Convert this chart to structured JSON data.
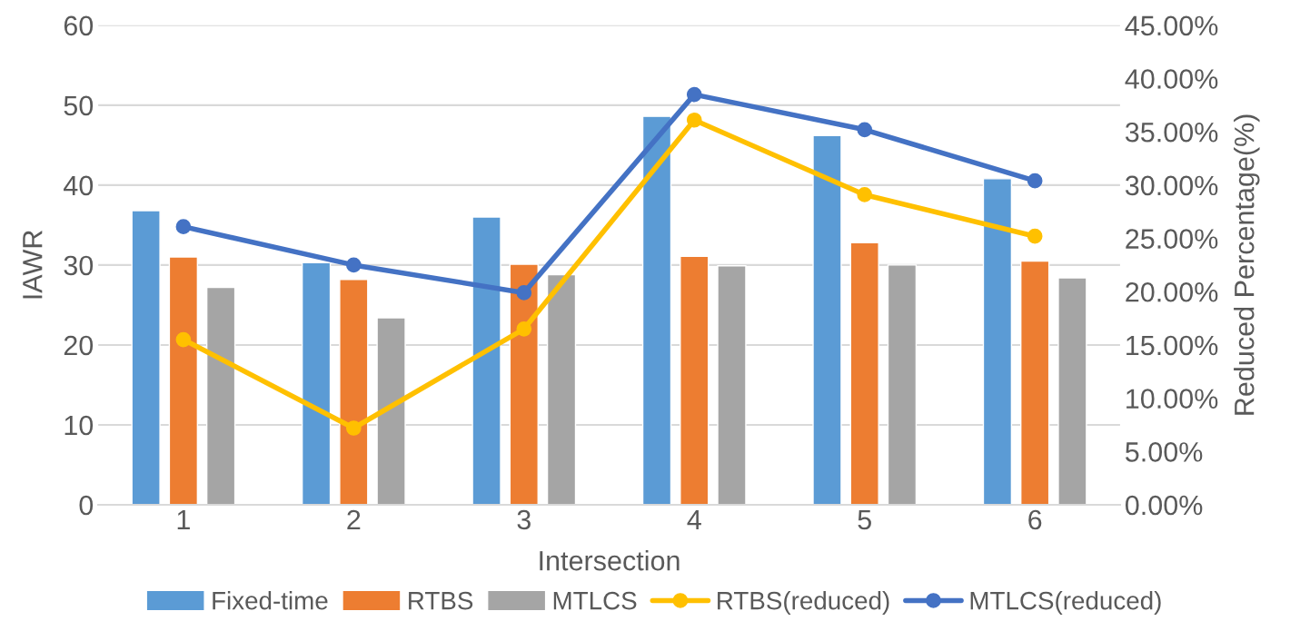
{
  "chart_data": {
    "type": "bar",
    "xlabel": "Intersection",
    "ylabel": "IAWR",
    "y2label": "Reduced Percentage(%)",
    "categories": [
      "1",
      "2",
      "3",
      "4",
      "5",
      "6"
    ],
    "series": [
      {
        "name": "Fixed-time",
        "color": "#5b9bd5",
        "values": [
          36.8,
          30.3,
          36.0,
          48.6,
          46.2,
          40.8
        ]
      },
      {
        "name": "RTBS",
        "color": "#ed7d31",
        "values": [
          31.0,
          28.2,
          30.1,
          31.1,
          32.8,
          30.5
        ]
      },
      {
        "name": "MTLCS",
        "color": "#a5a5a5",
        "values": [
          27.2,
          23.4,
          28.8,
          29.9,
          30.0,
          28.4
        ]
      },
      {
        "name": "RTBS(reduced)",
        "type": "line",
        "axis": "y2",
        "marker": "circle",
        "color": "#ffc000",
        "values": [
          15.5,
          7.2,
          16.5,
          36.1,
          29.1,
          25.2
        ]
      },
      {
        "name": "MTLCS(reduced)",
        "type": "line",
        "axis": "y2",
        "marker": "circle",
        "color": "#4472c4",
        "values": [
          26.1,
          22.5,
          19.9,
          38.5,
          35.2,
          30.4
        ]
      }
    ],
    "ylim": [
      0,
      60
    ],
    "yticks": [
      0,
      10,
      20,
      30,
      40,
      50,
      60
    ],
    "y2lim": [
      0,
      45
    ],
    "y2ticks": [
      {
        "value": 0,
        "label": "0.00%"
      },
      {
        "value": 5,
        "label": "5.00%"
      },
      {
        "value": 10,
        "label": "10.00%"
      },
      {
        "value": 15,
        "label": "15.00%"
      },
      {
        "value": 20,
        "label": "20.00%"
      },
      {
        "value": 25,
        "label": "25.00%"
      },
      {
        "value": 30,
        "label": "30.00%"
      },
      {
        "value": 35,
        "label": "35.00%"
      },
      {
        "value": 40,
        "label": "40.00%"
      },
      {
        "value": 45,
        "label": "45.00%"
      }
    ],
    "grid": "y",
    "legend": "bottom"
  }
}
